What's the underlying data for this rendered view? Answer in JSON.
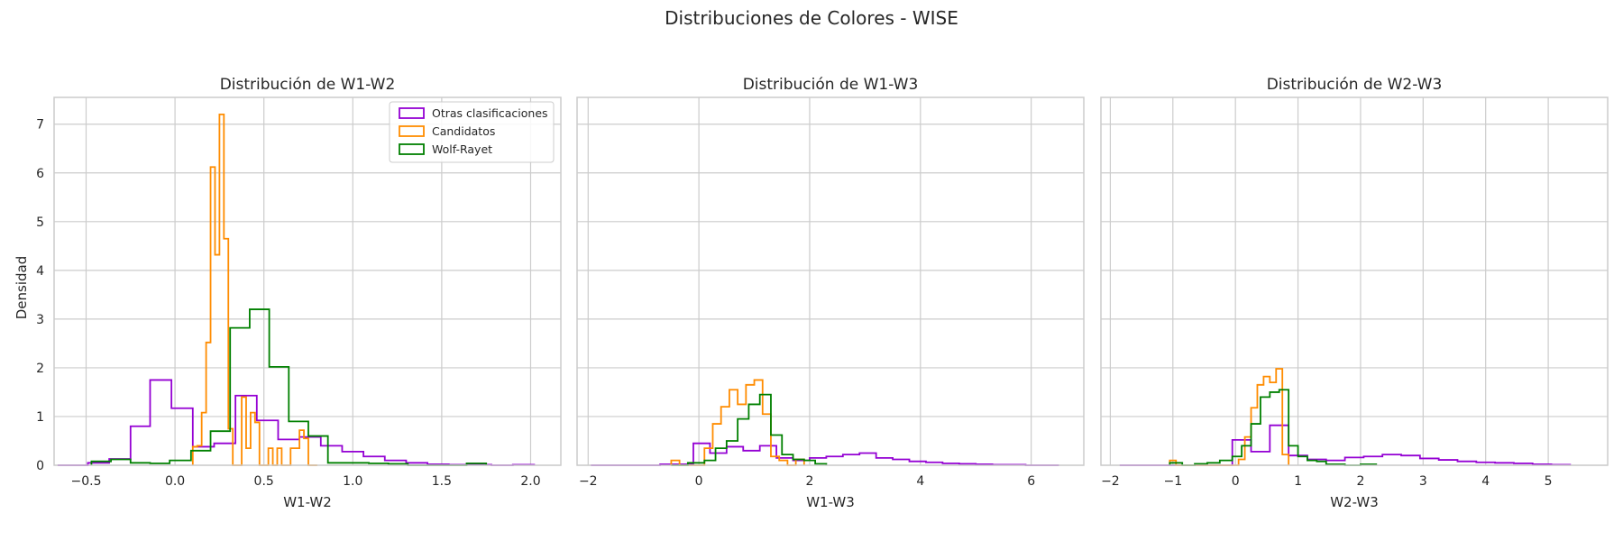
{
  "suptitle": "Distribuciones de Colores - WISE",
  "colors": {
    "otras": "#9400d3",
    "candidatos": "#ff8c00",
    "wolf_rayet": "#008000",
    "grid": "#cccccc",
    "spine": "#cccccc"
  },
  "legend": {
    "placement": "top-right of first panel",
    "entries": [
      "Otras clasificaciones",
      "Candidatos",
      "Wolf-Rayet"
    ]
  },
  "chart_data": [
    {
      "type": "histogram-step",
      "title": "Distribución de W1-W2",
      "xlabel": "W1-W2",
      "ylabel": "Densidad",
      "xlim": [
        -0.68,
        2.17
      ],
      "ylim": [
        0,
        7.55
      ],
      "xticks": [
        -0.5,
        0.0,
        0.5,
        1.0,
        1.5,
        2.0
      ],
      "xtick_labels": [
        "−0.5",
        "0.0",
        "0.5",
        "1.0",
        "1.5",
        "2.0"
      ],
      "yticks": [
        0,
        1,
        2,
        3,
        4,
        5,
        6,
        7
      ],
      "ytick_labels": [
        "0",
        "1",
        "2",
        "3",
        "4",
        "5",
        "6",
        "7"
      ],
      "grid": true,
      "series": [
        {
          "name": "Otras clasificaciones",
          "color_key": "otras",
          "edges": [
            -0.66,
            -0.49,
            -0.37,
            -0.25,
            -0.14,
            -0.02,
            0.1,
            0.22,
            0.34,
            0.46,
            0.58,
            0.7,
            0.82,
            0.94,
            1.06,
            1.18,
            1.3,
            1.42,
            1.54,
            1.66,
            1.78,
            1.9,
            2.02
          ],
          "values": [
            0.0,
            0.05,
            0.13,
            0.8,
            1.75,
            1.17,
            0.38,
            0.45,
            1.43,
            0.92,
            0.53,
            0.58,
            0.4,
            0.28,
            0.18,
            0.1,
            0.05,
            0.02,
            0.01,
            0.01,
            0.0,
            0.01
          ]
        },
        {
          "name": "Candidatos",
          "color_key": "candidatos",
          "edges": [
            0.1,
            0.125,
            0.15,
            0.175,
            0.2,
            0.225,
            0.25,
            0.275,
            0.3,
            0.325,
            0.35,
            0.375,
            0.4,
            0.425,
            0.45,
            0.475,
            0.5,
            0.525,
            0.55,
            0.575,
            0.6,
            0.625,
            0.65,
            0.675,
            0.7,
            0.725,
            0.75,
            0.775,
            0.8
          ],
          "values": [
            0.38,
            0.4,
            1.08,
            2.52,
            6.12,
            4.32,
            7.2,
            4.65,
            0.75,
            0.0,
            0.0,
            1.4,
            0.35,
            1.08,
            0.88,
            0.0,
            0.0,
            0.35,
            0.0,
            0.35,
            0.0,
            0.0,
            0.35,
            0.35,
            0.72,
            0.55,
            0.0,
            0.0
          ]
        },
        {
          "name": "Wolf-Rayet",
          "color_key": "wolf_rayet",
          "edges": [
            -0.47,
            -0.36,
            -0.25,
            -0.14,
            -0.03,
            0.09,
            0.2,
            0.31,
            0.42,
            0.53,
            0.64,
            0.75,
            0.86,
            0.98,
            1.09,
            1.2,
            1.31,
            1.42,
            1.53,
            1.64,
            1.75
          ],
          "values": [
            0.08,
            0.12,
            0.05,
            0.04,
            0.1,
            0.3,
            0.7,
            2.82,
            3.2,
            2.02,
            0.9,
            0.6,
            0.05,
            0.05,
            0.04,
            0.03,
            0.0,
            0.0,
            0.0,
            0.04
          ]
        }
      ]
    },
    {
      "type": "histogram-step",
      "title": "Distribución de W1-W3",
      "xlabel": "W1-W3",
      "ylabel": "",
      "xlim": [
        -2.2,
        6.95
      ],
      "ylim": [
        0,
        7.55
      ],
      "xticks": [
        -2,
        0,
        2,
        4,
        6
      ],
      "xtick_labels": [
        "−2",
        "0",
        "2",
        "4",
        "6"
      ],
      "yticks": [
        0,
        1,
        2,
        3,
        4,
        5,
        6,
        7
      ],
      "grid": true,
      "series": [
        {
          "name": "Otras clasificaciones",
          "color_key": "otras",
          "edges": [
            -1.95,
            -1.6,
            -1.3,
            -1.0,
            -0.7,
            -0.4,
            -0.1,
            0.2,
            0.5,
            0.8,
            1.1,
            1.4,
            1.7,
            2.0,
            2.3,
            2.6,
            2.9,
            3.2,
            3.5,
            3.8,
            4.1,
            4.4,
            4.7,
            5.0,
            5.3,
            5.6,
            5.9,
            6.2,
            6.5
          ],
          "values": [
            0.0,
            0.0,
            0.0,
            0.0,
            0.02,
            0.02,
            0.45,
            0.25,
            0.38,
            0.3,
            0.4,
            0.15,
            0.1,
            0.15,
            0.18,
            0.22,
            0.25,
            0.15,
            0.12,
            0.08,
            0.06,
            0.04,
            0.03,
            0.02,
            0.01,
            0.01,
            0.0,
            0.0
          ]
        },
        {
          "name": "Candidatos",
          "color_key": "candidatos",
          "edges": [
            -0.5,
            -0.35,
            -0.2,
            0.1,
            0.25,
            0.4,
            0.55,
            0.7,
            0.85,
            1.0,
            1.15,
            1.3,
            1.45,
            1.6,
            1.75,
            1.9
          ],
          "values": [
            0.1,
            0.0,
            0.0,
            0.35,
            0.85,
            1.2,
            1.55,
            1.25,
            1.65,
            1.75,
            1.05,
            0.18,
            0.1,
            0.0,
            0.12
          ]
        },
        {
          "name": "Wolf-Rayet",
          "color_key": "wolf_rayet",
          "edges": [
            -0.5,
            -0.2,
            0.1,
            0.3,
            0.5,
            0.7,
            0.9,
            1.1,
            1.3,
            1.5,
            1.7,
            1.9,
            2.1,
            2.3
          ],
          "values": [
            0.0,
            0.05,
            0.1,
            0.35,
            0.5,
            0.95,
            1.25,
            1.45,
            0.62,
            0.22,
            0.12,
            0.1,
            0.03
          ]
        }
      ]
    },
    {
      "type": "histogram-step",
      "title": "Distribución de W2-W3",
      "xlabel": "W2-W3",
      "ylabel": "",
      "xlim": [
        -2.15,
        5.95
      ],
      "ylim": [
        0,
        7.55
      ],
      "xticks": [
        -2,
        -1,
        0,
        1,
        2,
        3,
        4,
        5
      ],
      "xtick_labels": [
        "−2",
        "−1",
        "0",
        "1",
        "2",
        "3",
        "4",
        "5"
      ],
      "yticks": [
        0,
        1,
        2,
        3,
        4,
        5,
        6,
        7
      ],
      "grid": true,
      "series": [
        {
          "name": "Otras clasificaciones",
          "color_key": "otras",
          "edges": [
            -1.85,
            -1.55,
            -1.25,
            -0.95,
            -0.65,
            -0.35,
            -0.05,
            0.25,
            0.55,
            0.85,
            1.15,
            1.45,
            1.75,
            2.05,
            2.35,
            2.65,
            2.95,
            3.25,
            3.55,
            3.85,
            4.15,
            4.45,
            4.75,
            5.05,
            5.35
          ],
          "values": [
            0.0,
            0.0,
            0.0,
            0.0,
            0.0,
            0.0,
            0.52,
            0.28,
            0.82,
            0.2,
            0.12,
            0.1,
            0.16,
            0.18,
            0.22,
            0.2,
            0.14,
            0.11,
            0.08,
            0.06,
            0.05,
            0.04,
            0.02,
            0.01
          ]
        },
        {
          "name": "Candidatos",
          "color_key": "candidatos",
          "edges": [
            -1.05,
            -0.95,
            -0.85,
            -0.75,
            -0.65,
            -0.55,
            -0.45,
            -0.35,
            -0.25,
            -0.15,
            -0.05,
            0.05,
            0.15,
            0.25,
            0.35,
            0.45,
            0.55,
            0.65,
            0.75,
            0.85
          ],
          "values": [
            0.1,
            0.0,
            0.0,
            0.0,
            0.0,
            0.0,
            0.0,
            0.0,
            0.0,
            0.0,
            0.0,
            0.12,
            0.58,
            1.18,
            1.65,
            1.82,
            1.7,
            1.98,
            0.22
          ]
        },
        {
          "name": "Wolf-Rayet",
          "color_key": "wolf_rayet",
          "edges": [
            -1.05,
            -0.85,
            -0.65,
            -0.45,
            -0.25,
            -0.05,
            0.1,
            0.25,
            0.4,
            0.55,
            0.7,
            0.85,
            1.0,
            1.15,
            1.3,
            1.45,
            1.6,
            1.75,
            2.0,
            2.25
          ],
          "values": [
            0.05,
            0.0,
            0.03,
            0.05,
            0.1,
            0.18,
            0.4,
            0.85,
            1.4,
            1.5,
            1.55,
            0.4,
            0.18,
            0.1,
            0.08,
            0.02,
            0.02,
            0.0,
            0.02
          ]
        }
      ]
    }
  ]
}
